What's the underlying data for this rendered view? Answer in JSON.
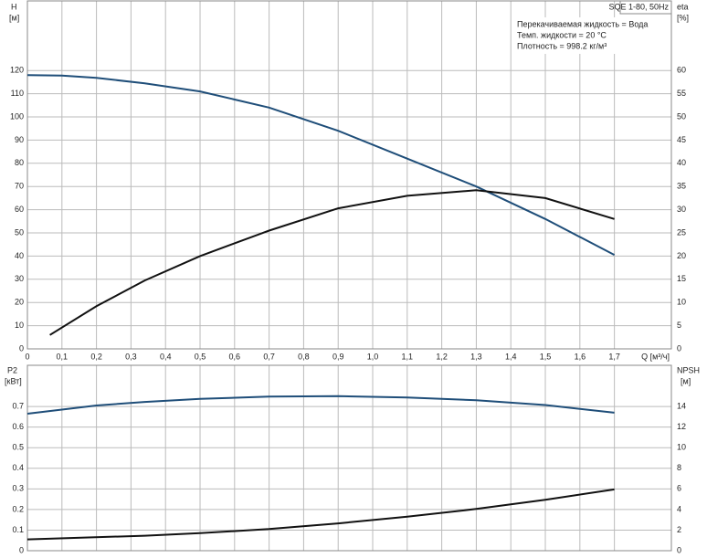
{
  "chart_data": [
    {
      "type": "line",
      "title": "SQE 1-80, 50Hz",
      "annotations": [
        "Перекачиваемая жидкость = Вода",
        "Темп. жидкости = 20 °C",
        "Плотность = 998.2 кг/м³"
      ],
      "xlabel": "Q [м³/ч]",
      "ylabel": "H",
      "yunit": "[м]",
      "y2label": "eta",
      "y2unit": "[%]",
      "xlim": [
        0,
        1.865
      ],
      "ylim": [
        0,
        150
      ],
      "y2lim": [
        0,
        75
      ],
      "xticks": [
        0,
        {
          "value": 0.1,
          "label": "0,1"
        },
        {
          "value": 0.2,
          "label": "0,2"
        },
        {
          "value": 0.3,
          "label": "0,3"
        },
        {
          "value": 0.4,
          "label": "0,4"
        },
        {
          "value": 0.5,
          "label": "0,5"
        },
        {
          "value": 0.6,
          "label": "0,6"
        },
        {
          "value": 0.7,
          "label": "0,7"
        },
        {
          "value": 0.8,
          "label": "0,8"
        },
        {
          "value": 0.9,
          "label": "0,9"
        },
        {
          "value": 1.0,
          "label": "1,0"
        },
        {
          "value": 1.1,
          "label": "1,1"
        },
        {
          "value": 1.2,
          "label": "1,2"
        },
        {
          "value": 1.3,
          "label": "1,3"
        },
        {
          "value": 1.4,
          "label": "1,4"
        },
        {
          "value": 1.5,
          "label": "1,5"
        },
        {
          "value": 1.6,
          "label": "1,6"
        },
        {
          "value": 1.7,
          "label": "1,7"
        }
      ],
      "yticks": [
        0,
        10,
        20,
        30,
        40,
        50,
        60,
        70,
        80,
        90,
        100,
        110,
        120
      ],
      "y2ticks": [
        0,
        5,
        10,
        15,
        20,
        25,
        30,
        35,
        40,
        45,
        50,
        55,
        60
      ],
      "grid": true,
      "series": [
        {
          "color": "#1f4e79",
          "x": [
            0,
            0.1,
            0.2,
            0.34,
            0.5,
            0.7,
            0.9,
            1.1,
            1.3,
            1.5,
            1.7
          ],
          "values": [
            118,
            117.8,
            116.8,
            114.5,
            111,
            104,
            94,
            82,
            70,
            56,
            40.5
          ]
        },
        {
          "color": "#111111",
          "axis": "y2",
          "x": [
            0.065,
            0.2,
            0.34,
            0.5,
            0.7,
            0.9,
            1.1,
            1.3,
            1.5,
            1.7
          ],
          "values": [
            3,
            9.2,
            14.75,
            20,
            25.5,
            30.3,
            33,
            34.2,
            32.5,
            28
          ]
        }
      ]
    },
    {
      "type": "line",
      "ylabel": "P2",
      "yunit": "[кВт]",
      "y2label": "NPSH",
      "y2unit": "[м]",
      "xlim": [
        0,
        1.865
      ],
      "ylim": [
        0,
        0.9
      ],
      "y2lim": [
        0,
        18
      ],
      "yticks": [
        0,
        0.1,
        0.2,
        0.3,
        0.4,
        0.5,
        0.6,
        0.7
      ],
      "y2ticks": [
        0,
        2,
        4,
        6,
        8,
        10,
        12,
        14
      ],
      "grid": true,
      "series": [
        {
          "color": "#1f4e79",
          "x": [
            0,
            0.2,
            0.34,
            0.5,
            0.7,
            0.9,
            1.1,
            1.3,
            1.5,
            1.7
          ],
          "values": [
            0.665,
            0.705,
            0.722,
            0.737,
            0.748,
            0.75,
            0.744,
            0.73,
            0.707,
            0.67
          ]
        },
        {
          "color": "#111111",
          "axis": "y2",
          "x": [
            0,
            0.34,
            0.5,
            0.7,
            0.9,
            1.1,
            1.3,
            1.5,
            1.7
          ],
          "values": [
            1.1,
            1.45,
            1.7,
            2.1,
            2.65,
            3.3,
            4.05,
            4.95,
            5.95
          ]
        }
      ]
    }
  ]
}
